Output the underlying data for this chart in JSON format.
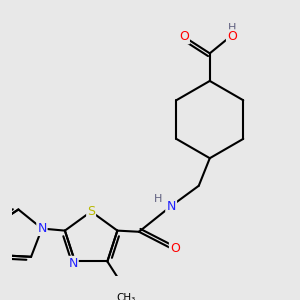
{
  "background_color": "#e8e8e8",
  "atom_colors": {
    "C": "#000000",
    "N": "#2020ff",
    "O": "#ff0000",
    "S": "#b8b800",
    "H": "#606080"
  },
  "bond_color": "#000000",
  "bond_width": 1.5,
  "figsize": [
    3.0,
    3.0
  ],
  "dpi": 100
}
